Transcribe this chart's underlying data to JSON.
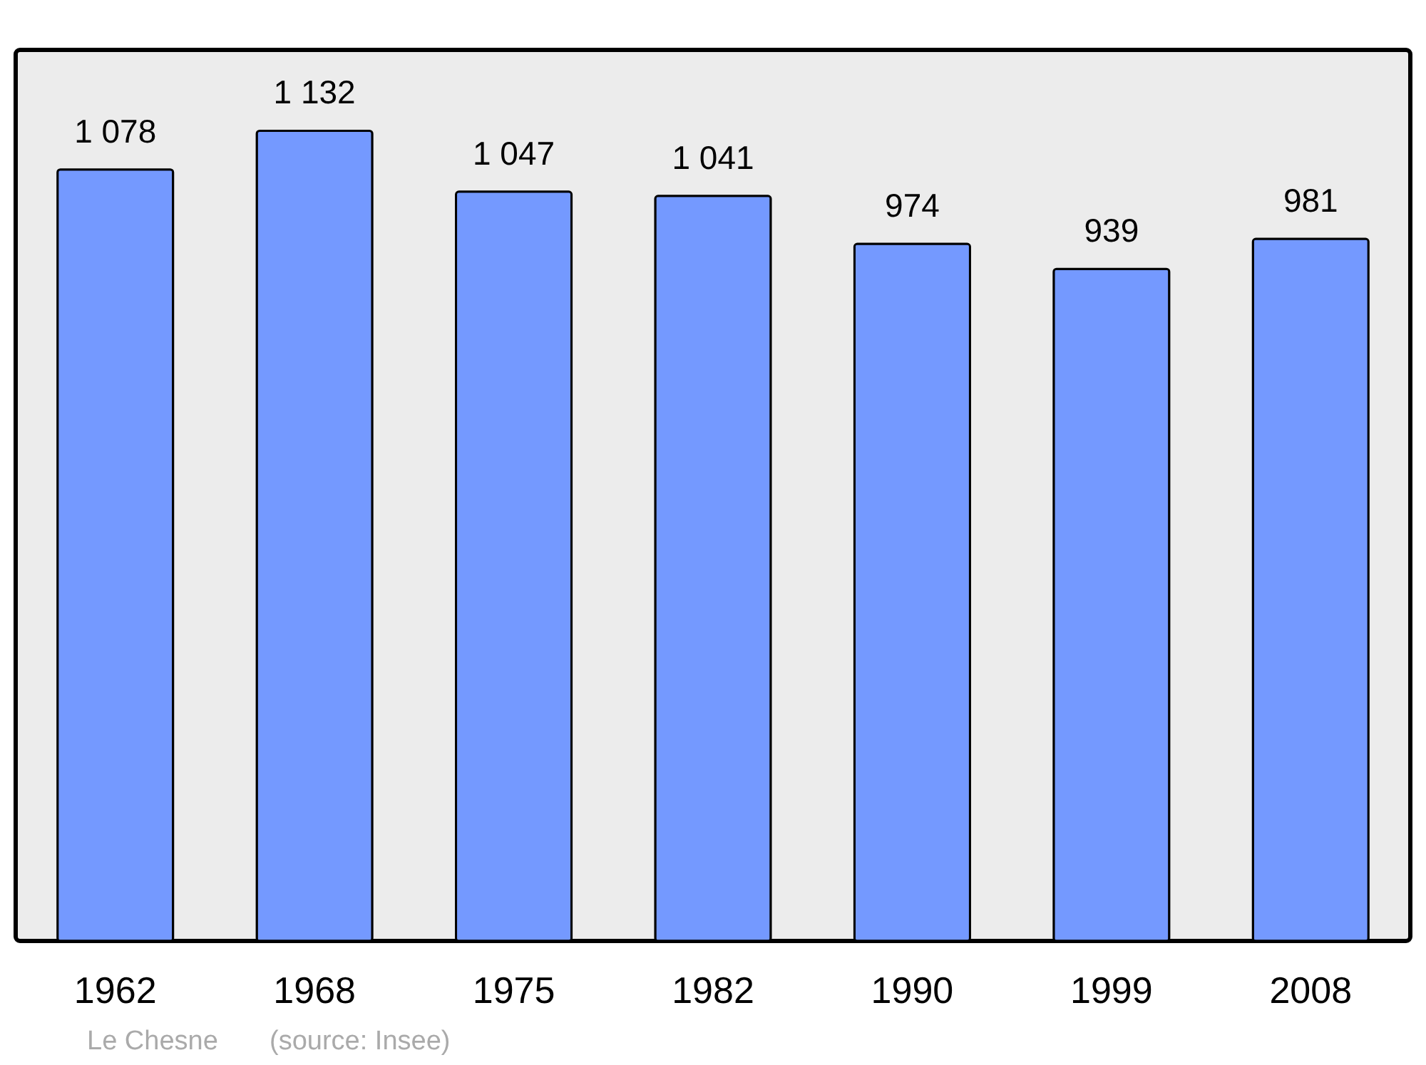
{
  "chart_data": {
    "type": "bar",
    "categories": [
      "1962",
      "1968",
      "1975",
      "1982",
      "1990",
      "1999",
      "2008"
    ],
    "values": [
      1078,
      1132,
      1047,
      1041,
      974,
      939,
      981
    ],
    "value_labels": [
      "1 078",
      "1 132",
      "1 047",
      "1 041",
      "974",
      "939",
      "981"
    ],
    "color": "#7499ff",
    "ylim": [
      0,
      1245
    ],
    "tick_labels": "x",
    "grid": false,
    "annotations": [
      "Le Chesne",
      "(source: Insee)"
    ]
  }
}
